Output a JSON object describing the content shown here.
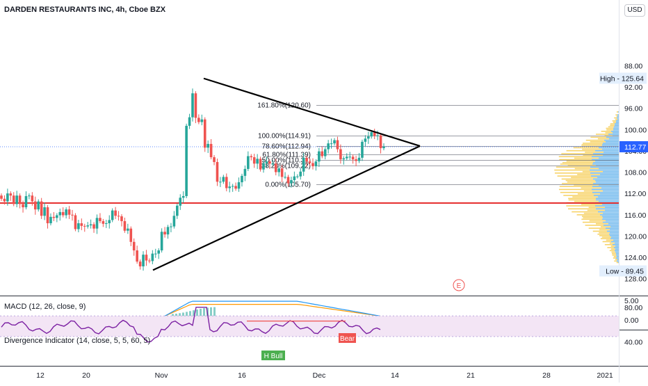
{
  "header": {
    "title": "DARDEN RESTAURANTS INC, 4h, Cboe BZX",
    "currency_button": "USD"
  },
  "price_axis": {
    "ticks": [
      "128.00",
      "124.00",
      "120.00",
      "116.00",
      "112.00",
      "108.00",
      "104.00",
      "100.00",
      "96.00",
      "92.00",
      "88.00"
    ],
    "high_label": "High - 125.64",
    "low_label": "Low - 89.45",
    "last_price": "112.77",
    "colors": {
      "last_price": "#2962ff",
      "high_low_bg": "#e3effd",
      "support_line": "#e00000"
    }
  },
  "time_axis": {
    "ticks": [
      "12",
      "20",
      "Nov",
      "16",
      "Dec",
      "14",
      "21",
      "28",
      "2021"
    ]
  },
  "fibonacci": [
    {
      "label": "161.80%(120.60)",
      "value": 120.6
    },
    {
      "label": "100.00%(114.91)",
      "value": 114.91
    },
    {
      "label": "78.60%(112.94)",
      "value": 112.94
    },
    {
      "label": "61.80%(111.39)",
      "value": 111.39
    },
    {
      "label": "50.00%(110.31)",
      "value": 110.31
    },
    {
      "label": "38.20%(109.22)",
      "value": 109.22
    },
    {
      "label": "0.00%(105.70)",
      "value": 105.7
    }
  ],
  "earnings_marker": "E",
  "macd": {
    "label": "MACD (12, 26, close, 9)",
    "ticks": [
      "5.00",
      "0.00"
    ],
    "colors": {
      "macd_line": "#2196f3",
      "signal_line": "#ff9800",
      "hist_pos": "#26a69a",
      "hist_neg": "#ef5350"
    }
  },
  "divergence": {
    "label": "Divergence Indicator (14, close, 5, 5, 60, 5)",
    "ticks": [
      "80.00",
      "40.00"
    ],
    "bear_label": "Bear",
    "bull_label": "H Bull",
    "colors": {
      "line": "#7b1fa2",
      "band": "#f3e5f5",
      "bear": "#ef5350",
      "bull": "#4caf50"
    }
  },
  "chart_data": {
    "type": "candlestick",
    "title": "DARDEN RESTAURANTS INC, 4h, Cboe BZX",
    "ylim": [
      86.5,
      131.0
    ],
    "y_ticks": [
      88,
      92,
      96,
      100,
      104,
      108,
      112,
      116,
      120,
      124,
      128
    ],
    "x_ticks": [
      "12",
      "20",
      "Nov",
      "16",
      "Dec",
      "14",
      "21",
      "28",
      "2021"
    ],
    "close_series": [
      103.0,
      102.5,
      104.0,
      103.6,
      102.0,
      103.6,
      102.0,
      101.4,
      103.5,
      103.6,
      102.5,
      101.0,
      102.5,
      99.8,
      101.4,
      98.4,
      99.6,
      99.4,
      99.9,
      100.5,
      99.9,
      101.0,
      100.0,
      99.9,
      97.3,
      98.4,
      97.9,
      97.8,
      98.0,
      98.2,
      97.4,
      99.4,
      98.8,
      98.3,
      98.4,
      99.0,
      100.8,
      99.8,
      99.7,
      98.8,
      97.0,
      97.4,
      94.9,
      93.3,
      91.2,
      90.3,
      92.5,
      91.4,
      91.3,
      92.7,
      92.7,
      93.3,
      96.8,
      96.3,
      97.7,
      97.8,
      99.8,
      101.7,
      103.2,
      103.5,
      116.7,
      118.3,
      122.8,
      118.2,
      117.4,
      117.9,
      112.6,
      113.3,
      110.8,
      109.9,
      106.2,
      106.2,
      107.1,
      105.0,
      105.3,
      105.4,
      104.9,
      106.1,
      107.3,
      108.6,
      111.0,
      110.8,
      109.6,
      110.5,
      108.5,
      109.7,
      110.0,
      109.6,
      109.6,
      108.0,
      108.7,
      107.1,
      107.1,
      105.9,
      106.5,
      107.2,
      107.2,
      108.1,
      110.7,
      110.0,
      109.7,
      109.1,
      110.0,
      111.9,
      111.0,
      112.3,
      113.4,
      113.4,
      114.0,
      112.3,
      110.4,
      110.6,
      110.9,
      110.9,
      110.4,
      110.1,
      110.7,
      113.7,
      114.3,
      114.7,
      115.5,
      114.8,
      114.9,
      112.5,
      112.77
    ],
    "high": 125.64,
    "low": 89.45,
    "last": 112.77,
    "horizontal_support": 102.2,
    "triangle": {
      "apex_price": 112.9,
      "upper_start": 125.6,
      "lower_start": 89.6
    },
    "macd": {
      "ylim": [
        -2,
        6
      ],
      "ticks": [
        5,
        0
      ]
    },
    "divergence": {
      "ylim": [
        20,
        95
      ],
      "ticks": [
        80,
        40
      ],
      "upper_band": 70,
      "lower_band": 46
    }
  }
}
